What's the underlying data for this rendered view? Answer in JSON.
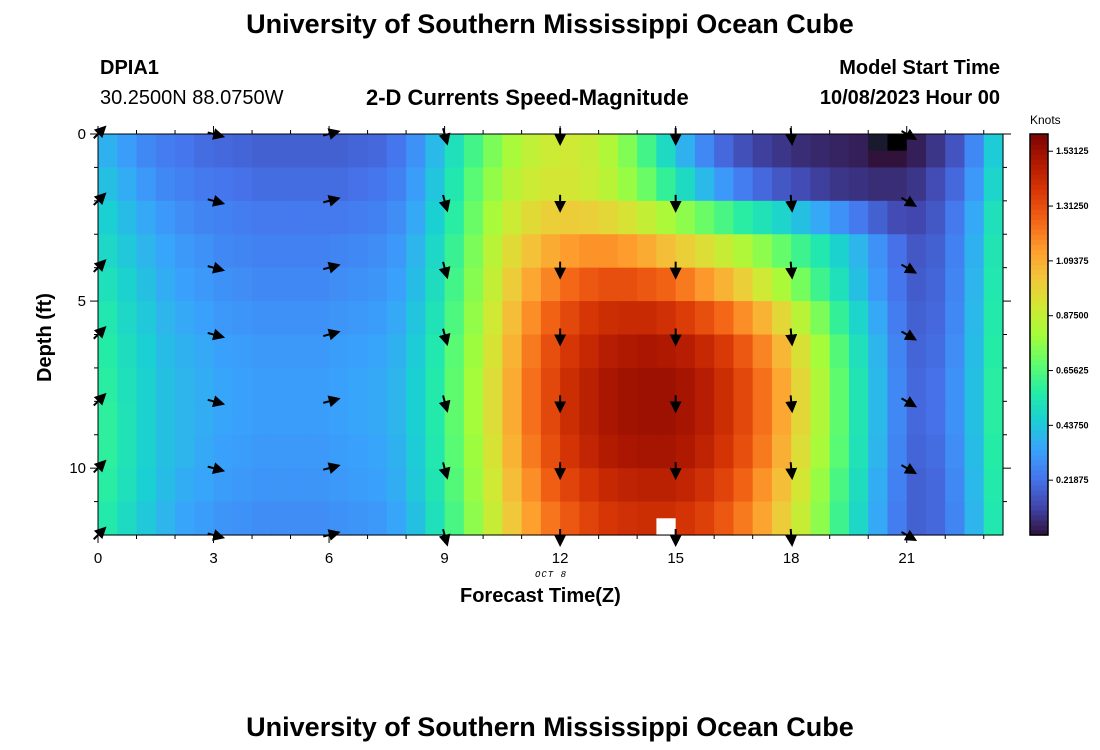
{
  "header": {
    "title": "University of Southern Mississippi Ocean Cube",
    "station_id": "DPIA1",
    "station_coords": "30.2500N  88.0750W",
    "product": "2-D Currents Speed-Magnitude",
    "model_label": "Model Start Time",
    "model_time": "10/08/2023 Hour 00"
  },
  "footer": {
    "title": "University of Southern Mississippi Ocean Cube"
  },
  "chart_data": {
    "type": "heatmap",
    "title": "2-D Currents Speed-Magnitude",
    "xlabel": "Forecast Time(Z)",
    "x_sublabel": "OCT 8",
    "ylabel": "Depth (ft)",
    "xlim": [
      0,
      23.5
    ],
    "ylim": [
      0,
      12
    ],
    "x_ticks": [
      0,
      3,
      6,
      9,
      12,
      15,
      18,
      21
    ],
    "x_tick_labels": [
      "0",
      "3",
      "6",
      "9",
      "12",
      "15",
      "18",
      "21"
    ],
    "y_ticks": [
      0,
      5,
      10
    ],
    "y_tick_labels": [
      "0",
      "5",
      "10"
    ],
    "grid": false,
    "x_hours": [
      0,
      0.5,
      1,
      1.5,
      2,
      2.5,
      3,
      3.5,
      4,
      4.5,
      5,
      5.5,
      6,
      6.5,
      7,
      7.5,
      8,
      8.5,
      9,
      9.5,
      10,
      10.5,
      11,
      11.5,
      12,
      12.5,
      13,
      13.5,
      14,
      14.5,
      15,
      15.5,
      16,
      16.5,
      17,
      17.5,
      18,
      18.5,
      19,
      19.5,
      20,
      20.5,
      21,
      21.5,
      22,
      22.5,
      23
    ],
    "depth_levels_ft": [
      0,
      1,
      2,
      3,
      4,
      5,
      6,
      7,
      8,
      9,
      10,
      11
    ],
    "speed_knots_by_depth": [
      [
        0.38,
        0.33,
        0.28,
        0.25,
        0.23,
        0.21,
        0.2,
        0.19,
        0.18,
        0.18,
        0.18,
        0.18,
        0.18,
        0.19,
        0.2,
        0.23,
        0.3,
        0.4,
        0.52,
        0.63,
        0.73,
        0.81,
        0.87,
        0.9,
        0.91,
        0.89,
        0.83,
        0.74,
        0.63,
        0.5,
        0.38,
        0.28,
        0.2,
        0.14,
        0.1,
        0.08,
        0.06,
        0.05,
        0.04,
        0.03,
        0.0,
        0.0,
        0.03,
        0.08,
        0.15,
        0.28,
        0.45
      ],
      [
        0.42,
        0.37,
        0.32,
        0.28,
        0.26,
        0.24,
        0.23,
        0.22,
        0.21,
        0.21,
        0.21,
        0.21,
        0.21,
        0.22,
        0.23,
        0.26,
        0.33,
        0.43,
        0.55,
        0.67,
        0.77,
        0.85,
        0.9,
        0.92,
        0.92,
        0.9,
        0.85,
        0.78,
        0.7,
        0.6,
        0.5,
        0.4,
        0.32,
        0.25,
        0.2,
        0.16,
        0.13,
        0.1,
        0.08,
        0.07,
        0.06,
        0.06,
        0.08,
        0.13,
        0.2,
        0.32,
        0.48
      ],
      [
        0.46,
        0.41,
        0.36,
        0.32,
        0.29,
        0.27,
        0.26,
        0.25,
        0.24,
        0.24,
        0.24,
        0.24,
        0.24,
        0.25,
        0.26,
        0.29,
        0.36,
        0.46,
        0.58,
        0.7,
        0.81,
        0.9,
        0.96,
        1.0,
        1.01,
        1.0,
        0.97,
        0.93,
        0.88,
        0.82,
        0.76,
        0.7,
        0.64,
        0.58,
        0.53,
        0.48,
        0.42,
        0.36,
        0.3,
        0.24,
        0.18,
        0.13,
        0.12,
        0.16,
        0.24,
        0.36,
        0.52
      ],
      [
        0.49,
        0.44,
        0.39,
        0.35,
        0.32,
        0.3,
        0.28,
        0.27,
        0.26,
        0.26,
        0.26,
        0.26,
        0.27,
        0.28,
        0.29,
        0.32,
        0.39,
        0.49,
        0.61,
        0.73,
        0.85,
        0.96,
        1.04,
        1.1,
        1.14,
        1.16,
        1.16,
        1.14,
        1.1,
        1.05,
        1.0,
        0.95,
        0.89,
        0.83,
        0.76,
        0.69,
        0.62,
        0.55,
        0.47,
        0.39,
        0.3,
        0.22,
        0.16,
        0.18,
        0.26,
        0.38,
        0.54
      ],
      [
        0.52,
        0.47,
        0.42,
        0.37,
        0.34,
        0.32,
        0.3,
        0.29,
        0.28,
        0.28,
        0.28,
        0.28,
        0.29,
        0.3,
        0.31,
        0.34,
        0.41,
        0.51,
        0.63,
        0.75,
        0.88,
        1.01,
        1.11,
        1.19,
        1.25,
        1.29,
        1.31,
        1.31,
        1.29,
        1.26,
        1.21,
        1.15,
        1.08,
        1.0,
        0.91,
        0.82,
        0.72,
        0.62,
        0.52,
        0.42,
        0.32,
        0.23,
        0.17,
        0.19,
        0.27,
        0.39,
        0.55
      ],
      [
        0.55,
        0.49,
        0.44,
        0.39,
        0.36,
        0.34,
        0.32,
        0.31,
        0.3,
        0.3,
        0.3,
        0.3,
        0.31,
        0.32,
        0.33,
        0.36,
        0.43,
        0.53,
        0.65,
        0.77,
        0.91,
        1.05,
        1.17,
        1.26,
        1.33,
        1.38,
        1.41,
        1.42,
        1.42,
        1.4,
        1.36,
        1.31,
        1.25,
        1.17,
        1.08,
        0.97,
        0.85,
        0.73,
        0.6,
        0.48,
        0.36,
        0.25,
        0.18,
        0.2,
        0.28,
        0.4,
        0.56
      ],
      [
        0.57,
        0.51,
        0.46,
        0.41,
        0.38,
        0.36,
        0.34,
        0.33,
        0.32,
        0.32,
        0.32,
        0.32,
        0.33,
        0.34,
        0.35,
        0.38,
        0.45,
        0.55,
        0.67,
        0.79,
        0.93,
        1.08,
        1.21,
        1.31,
        1.38,
        1.43,
        1.47,
        1.49,
        1.5,
        1.49,
        1.47,
        1.43,
        1.37,
        1.29,
        1.19,
        1.07,
        0.94,
        0.8,
        0.66,
        0.52,
        0.39,
        0.27,
        0.19,
        0.21,
        0.29,
        0.41,
        0.57
      ],
      [
        0.58,
        0.52,
        0.47,
        0.42,
        0.39,
        0.37,
        0.35,
        0.34,
        0.33,
        0.33,
        0.33,
        0.33,
        0.34,
        0.35,
        0.36,
        0.39,
        0.46,
        0.56,
        0.68,
        0.8,
        0.95,
        1.1,
        1.23,
        1.33,
        1.41,
        1.46,
        1.5,
        1.52,
        1.53,
        1.53,
        1.51,
        1.47,
        1.41,
        1.33,
        1.23,
        1.11,
        0.97,
        0.83,
        0.68,
        0.54,
        0.4,
        0.28,
        0.2,
        0.22,
        0.3,
        0.42,
        0.58
      ],
      [
        0.59,
        0.53,
        0.47,
        0.42,
        0.39,
        0.37,
        0.35,
        0.34,
        0.33,
        0.33,
        0.33,
        0.33,
        0.34,
        0.35,
        0.36,
        0.39,
        0.46,
        0.56,
        0.68,
        0.8,
        0.95,
        1.1,
        1.23,
        1.33,
        1.41,
        1.46,
        1.5,
        1.52,
        1.53,
        1.53,
        1.51,
        1.47,
        1.41,
        1.33,
        1.23,
        1.11,
        0.97,
        0.83,
        0.68,
        0.54,
        0.4,
        0.28,
        0.2,
        0.22,
        0.3,
        0.42,
        0.58
      ],
      [
        0.59,
        0.53,
        0.47,
        0.42,
        0.39,
        0.36,
        0.34,
        0.33,
        0.32,
        0.32,
        0.32,
        0.32,
        0.33,
        0.34,
        0.35,
        0.38,
        0.45,
        0.55,
        0.67,
        0.79,
        0.93,
        1.08,
        1.21,
        1.31,
        1.39,
        1.44,
        1.48,
        1.5,
        1.51,
        1.51,
        1.49,
        1.45,
        1.39,
        1.31,
        1.21,
        1.09,
        0.95,
        0.81,
        0.67,
        0.53,
        0.39,
        0.27,
        0.19,
        0.21,
        0.29,
        0.41,
        0.57
      ],
      [
        0.58,
        0.52,
        0.46,
        0.41,
        0.37,
        0.35,
        0.33,
        0.32,
        0.31,
        0.31,
        0.31,
        0.31,
        0.32,
        0.33,
        0.34,
        0.37,
        0.44,
        0.54,
        0.66,
        0.78,
        0.91,
        1.05,
        1.17,
        1.27,
        1.34,
        1.39,
        1.43,
        1.45,
        1.46,
        1.46,
        1.44,
        1.4,
        1.34,
        1.26,
        1.16,
        1.05,
        0.92,
        0.78,
        0.64,
        0.51,
        0.37,
        0.26,
        0.18,
        0.2,
        0.28,
        0.4,
        0.56
      ],
      [
        0.56,
        0.5,
        0.44,
        0.39,
        0.35,
        0.33,
        0.31,
        0.3,
        0.29,
        0.29,
        0.29,
        0.29,
        0.3,
        0.31,
        0.32,
        0.35,
        0.42,
        0.52,
        0.64,
        0.76,
        0.89,
        1.02,
        1.13,
        1.22,
        1.29,
        1.34,
        1.38,
        1.4,
        1.41,
        1.41,
        1.39,
        1.35,
        1.29,
        1.21,
        1.12,
        1.01,
        0.89,
        0.76,
        0.62,
        0.49,
        0.36,
        0.25,
        0.18,
        0.2,
        0.27,
        0.39,
        0.55
      ]
    ],
    "missing_cells": [
      {
        "hour": 20.0,
        "depth_ft": 0,
        "fill": "#1a1a2e"
      },
      {
        "hour": 20.5,
        "depth_ft": 0,
        "fill": "#000000"
      },
      {
        "hour": 14.5,
        "depth_ft": 11.5,
        "fill": "#ffffff"
      }
    ],
    "vectors": {
      "hours": [
        0,
        3,
        6,
        9,
        12,
        15,
        18,
        21
      ],
      "depths_ft": [
        0,
        2,
        4,
        6,
        8,
        10,
        12
      ],
      "direction_deg_math_by_hour": [
        45,
        -15,
        15,
        -75,
        -90,
        -90,
        -85,
        -30
      ]
    },
    "colorbar": {
      "title": "Knots",
      "min": 0,
      "max": 1.6,
      "tick_values": [
        0.21875,
        0.4375,
        0.65625,
        0.875,
        1.09375,
        1.3125,
        1.53125
      ],
      "tick_labels": [
        "0.21875",
        "0.43750",
        "0.65625",
        "0.87500",
        "1.09375",
        "1.31250",
        "1.53125"
      ],
      "colors": [
        "#30123b",
        "#4145ab",
        "#4675ed",
        "#39a2fc",
        "#1bcfd4",
        "#24eca6",
        "#61fc6c",
        "#a4fc3b",
        "#d1e834",
        "#f3c63a",
        "#fe9b2d",
        "#f36315",
        "#d93806",
        "#b11901",
        "#7a0402"
      ]
    }
  }
}
